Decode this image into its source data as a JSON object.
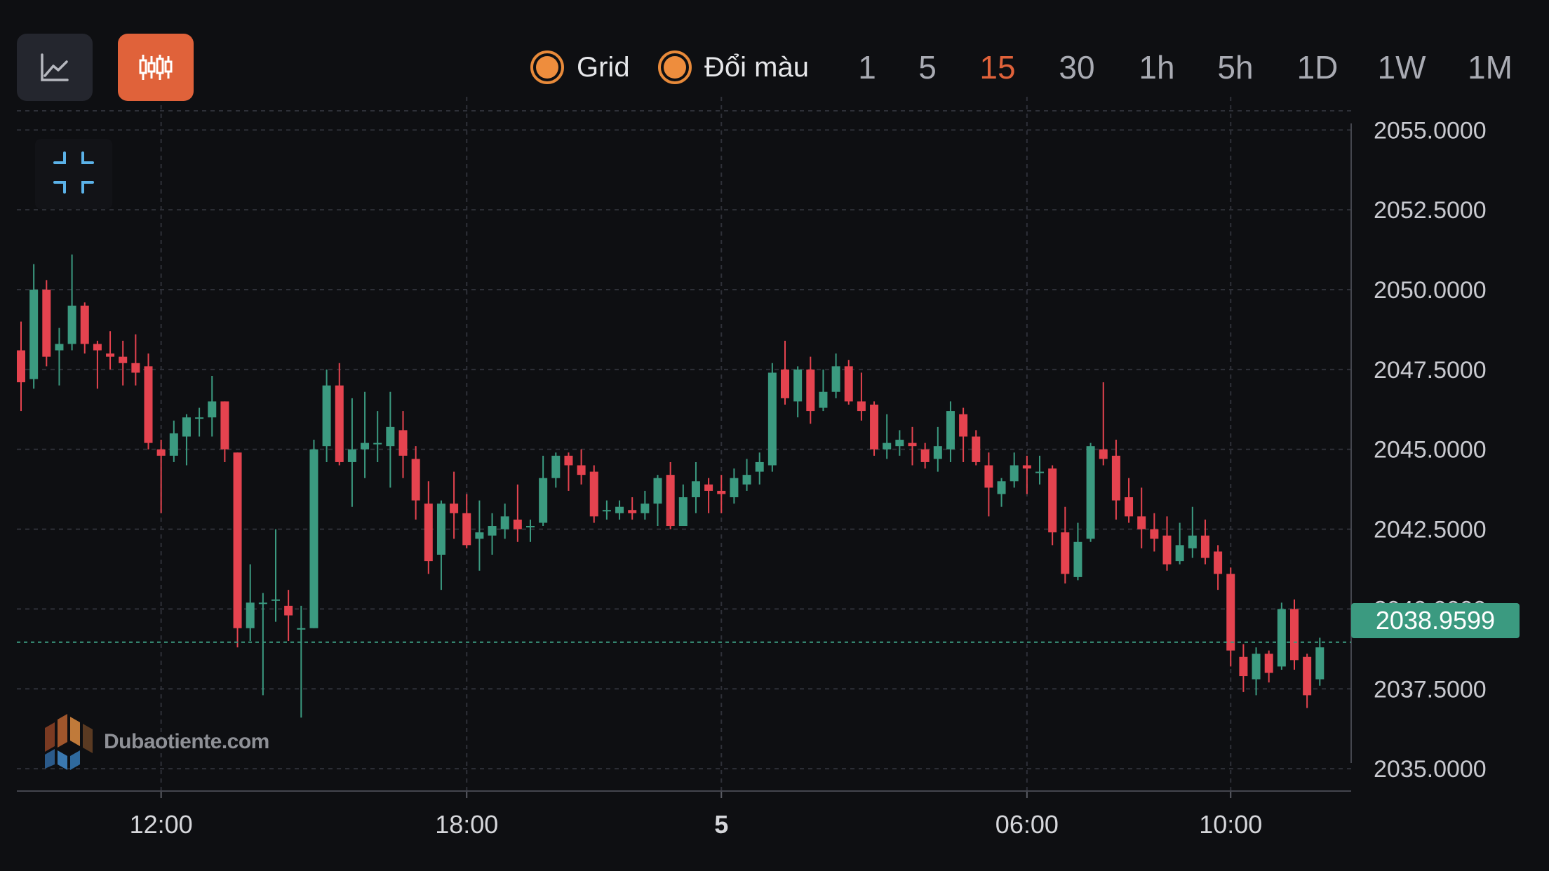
{
  "toolbar": {
    "chart_type_buttons": [
      {
        "icon": "line-chart-icon",
        "active": false
      },
      {
        "icon": "candlestick-icon",
        "active": true
      }
    ],
    "toggles": [
      {
        "label": "Grid",
        "checked": true
      },
      {
        "label": "Đổi màu",
        "checked": true
      }
    ],
    "timeframes": [
      "1",
      "5",
      "15",
      "30",
      "1h",
      "5h",
      "1D",
      "1W",
      "1M"
    ],
    "active_timeframe": "15"
  },
  "collapse_icon": "collapse-icon",
  "watermark": {
    "text": "Dubaotiente.com",
    "icon": "dubaotiente-logo-icon"
  },
  "colors": {
    "background": "#0e0f12",
    "up": "#3b9a80",
    "down": "#e5434f",
    "accent": "#e0623a",
    "toggle": "#ee8d3d",
    "grid": "#2e3038",
    "current_price_line": "#3b9a80"
  },
  "chart_data": {
    "type": "candlestick",
    "title": "",
    "grid": true,
    "y_axis_position": "right",
    "ylim": [
      2034.3,
      2055.6
    ],
    "y_ticks": [
      "2055.0000",
      "2052.5000",
      "2050.0000",
      "2047.5000",
      "2045.0000",
      "2042.5000",
      "2040.0000",
      "2037.5000",
      "2035.0000"
    ],
    "y_tick_values": [
      2055,
      2052.5,
      2050,
      2047.5,
      2045,
      2042.5,
      2040,
      2037.5,
      2035
    ],
    "x_ticks": [
      {
        "label": "12:00",
        "index": 11,
        "bold": false
      },
      {
        "label": "18:00",
        "index": 35,
        "bold": false
      },
      {
        "label": "5",
        "index": 55,
        "bold": true
      },
      {
        "label": "06:00",
        "index": 79,
        "bold": false
      },
      {
        "label": "10:00",
        "index": 95,
        "bold": false
      }
    ],
    "current_price": "2038.9599",
    "current_price_value": 2038.96,
    "candles": [
      [
        2048.1,
        2047.1,
        2049.0,
        2046.2
      ],
      [
        2047.2,
        2050.0,
        2050.8,
        2046.9
      ],
      [
        2050.0,
        2047.9,
        2050.3,
        2047.6
      ],
      [
        2048.1,
        2048.3,
        2048.8,
        2047.0
      ],
      [
        2048.3,
        2049.5,
        2051.1,
        2048.1
      ],
      [
        2049.5,
        2048.3,
        2049.6,
        2048.0
      ],
      [
        2048.3,
        2048.1,
        2048.4,
        2046.9
      ],
      [
        2048.0,
        2047.9,
        2048.7,
        2047.5
      ],
      [
        2047.9,
        2047.7,
        2048.4,
        2047.0
      ],
      [
        2047.7,
        2047.4,
        2048.6,
        2047.0
      ],
      [
        2047.6,
        2045.2,
        2048.0,
        2045.0
      ],
      [
        2045.0,
        2044.8,
        2045.3,
        2043.0
      ],
      [
        2044.8,
        2045.5,
        2045.9,
        2044.6
      ],
      [
        2045.4,
        2046.0,
        2046.1,
        2044.5
      ],
      [
        2046.0,
        2046.0,
        2046.3,
        2045.4
      ],
      [
        2046.0,
        2046.5,
        2047.3,
        2045.4
      ],
      [
        2046.5,
        2045.0,
        2046.5,
        2044.6
      ],
      [
        2044.9,
        2039.4,
        2044.9,
        2038.8
      ],
      [
        2039.4,
        2040.2,
        2041.4,
        2039.0
      ],
      [
        2040.2,
        2040.2,
        2040.5,
        2037.3
      ],
      [
        2040.3,
        2040.3,
        2042.5,
        2039.6
      ],
      [
        2040.1,
        2039.8,
        2040.6,
        2039.0
      ],
      [
        2039.4,
        2039.4,
        2040.1,
        2036.6
      ],
      [
        2039.4,
        2045.0,
        2045.3,
        2039.4
      ],
      [
        2045.1,
        2047.0,
        2047.5,
        2044.6
      ],
      [
        2047.0,
        2044.6,
        2047.7,
        2044.5
      ],
      [
        2044.6,
        2045.0,
        2046.6,
        2043.2
      ],
      [
        2045.0,
        2045.2,
        2046.8,
        2044.1
      ],
      [
        2045.2,
        2045.2,
        2046.2,
        2044.6
      ],
      [
        2045.1,
        2045.7,
        2046.8,
        2043.8
      ],
      [
        2045.6,
        2044.8,
        2046.2,
        2044.1
      ],
      [
        2044.7,
        2043.4,
        2045.1,
        2042.8
      ],
      [
        2043.3,
        2041.5,
        2044.0,
        2041.1
      ],
      [
        2041.7,
        2043.3,
        2043.4,
        2040.6
      ],
      [
        2043.3,
        2043.0,
        2044.3,
        2042.2
      ],
      [
        2043.0,
        2042.0,
        2043.6,
        2041.9
      ],
      [
        2042.2,
        2042.4,
        2043.4,
        2041.2
      ],
      [
        2042.3,
        2042.6,
        2043.0,
        2041.7
      ],
      [
        2042.5,
        2042.9,
        2043.3,
        2042.2
      ],
      [
        2042.8,
        2042.5,
        2043.9,
        2042.1
      ],
      [
        2042.6,
        2042.6,
        2042.8,
        2042.1
      ],
      [
        2042.7,
        2044.1,
        2044.8,
        2042.6
      ],
      [
        2044.1,
        2044.8,
        2044.9,
        2043.8
      ],
      [
        2044.8,
        2044.5,
        2044.9,
        2043.7
      ],
      [
        2044.5,
        2044.2,
        2045.0,
        2043.9
      ],
      [
        2044.3,
        2042.9,
        2044.5,
        2042.7
      ],
      [
        2043.1,
        2043.1,
        2043.4,
        2042.8
      ],
      [
        2043.0,
        2043.2,
        2043.4,
        2042.8
      ],
      [
        2043.1,
        2043.0,
        2043.5,
        2042.8
      ],
      [
        2043.0,
        2043.3,
        2043.7,
        2042.8
      ],
      [
        2043.3,
        2044.1,
        2044.2,
        2042.6
      ],
      [
        2044.2,
        2042.6,
        2044.6,
        2042.5
      ],
      [
        2042.6,
        2043.5,
        2043.9,
        2042.6
      ],
      [
        2043.5,
        2044.0,
        2044.6,
        2043.0
      ],
      [
        2043.9,
        2043.7,
        2044.1,
        2043.0
      ],
      [
        2043.7,
        2043.6,
        2044.2,
        2043.0
      ],
      [
        2043.5,
        2044.1,
        2044.4,
        2043.3
      ],
      [
        2043.9,
        2044.2,
        2044.7,
        2043.7
      ],
      [
        2044.3,
        2044.6,
        2044.9,
        2043.9
      ],
      [
        2044.5,
        2047.4,
        2047.7,
        2044.3
      ],
      [
        2047.5,
        2046.6,
        2048.4,
        2046.4
      ],
      [
        2046.5,
        2047.5,
        2047.6,
        2046.0
      ],
      [
        2047.5,
        2046.2,
        2047.9,
        2045.8
      ],
      [
        2046.3,
        2046.8,
        2047.5,
        2046.2
      ],
      [
        2046.8,
        2047.6,
        2048.0,
        2046.6
      ],
      [
        2047.6,
        2046.5,
        2047.8,
        2046.4
      ],
      [
        2046.5,
        2046.2,
        2047.4,
        2045.9
      ],
      [
        2046.4,
        2045.0,
        2046.5,
        2044.8
      ],
      [
        2045.0,
        2045.2,
        2046.1,
        2044.7
      ],
      [
        2045.1,
        2045.3,
        2045.6,
        2044.8
      ],
      [
        2045.2,
        2045.1,
        2045.7,
        2044.5
      ],
      [
        2045.0,
        2044.6,
        2045.2,
        2044.4
      ],
      [
        2044.7,
        2045.1,
        2045.7,
        2044.3
      ],
      [
        2045.0,
        2046.2,
        2046.5,
        2044.6
      ],
      [
        2046.1,
        2045.4,
        2046.3,
        2044.6
      ],
      [
        2045.4,
        2044.6,
        2045.6,
        2044.5
      ],
      [
        2044.5,
        2043.8,
        2044.9,
        2042.9
      ],
      [
        2043.6,
        2044.0,
        2044.1,
        2043.2
      ],
      [
        2044.0,
        2044.5,
        2044.9,
        2043.8
      ],
      [
        2044.5,
        2044.4,
        2044.8,
        2043.6
      ],
      [
        2044.3,
        2044.3,
        2044.8,
        2043.9
      ],
      [
        2044.4,
        2042.4,
        2044.5,
        2042.0
      ],
      [
        2042.4,
        2041.1,
        2043.2,
        2040.8
      ],
      [
        2041.0,
        2042.1,
        2042.7,
        2040.9
      ],
      [
        2042.2,
        2045.1,
        2045.2,
        2042.1
      ],
      [
        2045.0,
        2044.7,
        2047.1,
        2044.5
      ],
      [
        2044.8,
        2043.4,
        2045.3,
        2042.8
      ],
      [
        2043.5,
        2042.9,
        2044.1,
        2042.7
      ],
      [
        2042.9,
        2042.5,
        2043.8,
        2041.9
      ],
      [
        2042.5,
        2042.2,
        2043.0,
        2041.8
      ],
      [
        2042.3,
        2041.4,
        2042.9,
        2041.2
      ],
      [
        2041.5,
        2042.0,
        2042.7,
        2041.4
      ],
      [
        2041.9,
        2042.3,
        2043.2,
        2041.6
      ],
      [
        2042.3,
        2041.6,
        2042.8,
        2041.4
      ],
      [
        2041.8,
        2041.1,
        2042.0,
        2040.6
      ],
      [
        2041.1,
        2038.7,
        2041.3,
        2038.2
      ],
      [
        2038.5,
        2037.9,
        2038.9,
        2037.4
      ],
      [
        2037.8,
        2038.6,
        2038.8,
        2037.3
      ],
      [
        2038.6,
        2038.0,
        2038.7,
        2037.7
      ],
      [
        2038.2,
        2040.0,
        2040.2,
        2038.1
      ],
      [
        2040.0,
        2038.4,
        2040.3,
        2038.1
      ],
      [
        2038.5,
        2037.3,
        2038.6,
        2036.9
      ],
      [
        2037.8,
        2038.8,
        2039.1,
        2037.6
      ]
    ]
  }
}
